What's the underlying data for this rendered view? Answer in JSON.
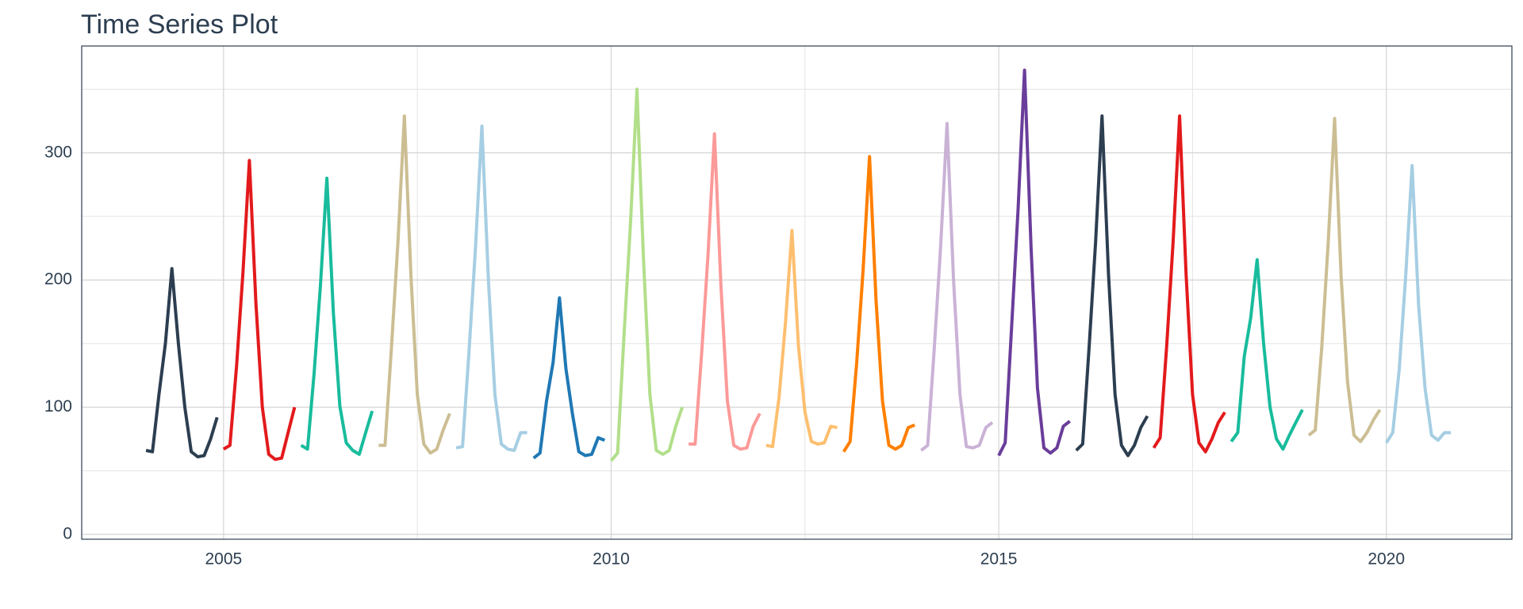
{
  "chart_data": {
    "type": "line",
    "title": "Time Series Plot",
    "xlim": [
      2003.17,
      2021.62
    ],
    "ylim": [
      -3.8,
      384
    ],
    "xticks": [
      2005,
      2010,
      2015,
      2020
    ],
    "yticks": [
      0,
      100,
      200,
      300
    ],
    "xminor": [
      2002.5,
      2007.5,
      2012.5,
      2017.5
    ],
    "yminor": [
      50,
      150,
      250,
      350
    ],
    "grid": true,
    "series": [
      {
        "color": "#2c3e50",
        "x": [
          2004,
          2004.083,
          2004.167,
          2004.25,
          2004.333,
          2004.417,
          2004.5,
          2004.583,
          2004.667,
          2004.75,
          2004.833,
          2004.917
        ],
        "values": [
          66,
          65,
          110,
          150,
          209,
          150,
          100,
          65,
          61,
          62,
          75,
          92
        ]
      },
      {
        "color": "#e31a1c",
        "x": [
          2005,
          2005.083,
          2005.167,
          2005.25,
          2005.333,
          2005.417,
          2005.5,
          2005.583,
          2005.667,
          2005.75,
          2005.833,
          2005.917
        ],
        "values": [
          67,
          70,
          132,
          206,
          294,
          182,
          100,
          63,
          59,
          60,
          80,
          100
        ]
      },
      {
        "color": "#18bc9c",
        "x": [
          2006,
          2006.083,
          2006.167,
          2006.25,
          2006.333,
          2006.417,
          2006.5,
          2006.583,
          2006.667,
          2006.75,
          2006.833,
          2006.917
        ],
        "values": [
          70,
          67,
          126,
          196,
          280,
          174,
          101,
          72,
          66,
          63,
          80,
          97
        ]
      },
      {
        "color": "#ccbe93",
        "x": [
          2007,
          2007.083,
          2007.167,
          2007.25,
          2007.333,
          2007.417,
          2007.5,
          2007.583,
          2007.667,
          2007.75,
          2007.833,
          2007.917
        ],
        "values": [
          70,
          70,
          148,
          230,
          329,
          204,
          110,
          71,
          64,
          67,
          82,
          95
        ]
      },
      {
        "color": "#a6cee3",
        "x": [
          2008,
          2008.083,
          2008.167,
          2008.25,
          2008.333,
          2008.417,
          2008.5,
          2008.583,
          2008.667,
          2008.75,
          2008.833,
          2008.917
        ],
        "values": [
          68,
          69,
          144,
          225,
          321,
          199,
          110,
          71,
          67,
          66,
          80,
          80
        ]
      },
      {
        "color": "#1f78b4",
        "x": [
          2009,
          2009.083,
          2009.167,
          2009.25,
          2009.333,
          2009.417,
          2009.5,
          2009.583,
          2009.667,
          2009.75,
          2009.833,
          2009.917
        ],
        "values": [
          60,
          64,
          105,
          135,
          186,
          130,
          95,
          65,
          62,
          63,
          76,
          74
        ]
      },
      {
        "color": "#b2df8a",
        "x": [
          2010,
          2010.083,
          2010.167,
          2010.25,
          2010.333,
          2010.417,
          2010.5,
          2010.583,
          2010.667,
          2010.75,
          2010.833,
          2010.917
        ],
        "values": [
          58,
          64,
          158,
          245,
          350,
          217,
          110,
          66,
          63,
          66,
          85,
          100
        ]
      },
      {
        "color": "#fb9a99",
        "x": [
          2011,
          2011.083,
          2011.167,
          2011.25,
          2011.333,
          2011.417,
          2011.5,
          2011.583,
          2011.667,
          2011.75,
          2011.833,
          2011.917
        ],
        "values": [
          71,
          71,
          142,
          220,
          315,
          195,
          105,
          70,
          67,
          68,
          85,
          95
        ]
      },
      {
        "color": "#fdbf6f",
        "x": [
          2012,
          2012.083,
          2012.167,
          2012.25,
          2012.333,
          2012.417,
          2012.5,
          2012.583,
          2012.667,
          2012.75,
          2012.833,
          2012.917
        ],
        "values": [
          70,
          69,
          108,
          167,
          239,
          148,
          96,
          73,
          71,
          72,
          85,
          84
        ]
      },
      {
        "color": "#ff7f00",
        "x": [
          2013,
          2013.083,
          2013.167,
          2013.25,
          2013.333,
          2013.417,
          2013.5,
          2013.583,
          2013.667,
          2013.75,
          2013.833,
          2013.917
        ],
        "values": [
          65,
          73,
          134,
          208,
          297,
          184,
          105,
          70,
          67,
          70,
          84,
          86
        ]
      },
      {
        "color": "#cab2d6",
        "x": [
          2014,
          2014.083,
          2014.167,
          2014.25,
          2014.333,
          2014.417,
          2014.5,
          2014.583,
          2014.667,
          2014.75,
          2014.833,
          2014.917
        ],
        "values": [
          66,
          70,
          145,
          226,
          323,
          200,
          110,
          69,
          68,
          70,
          84,
          88
        ]
      },
      {
        "color": "#6a3d9a",
        "x": [
          2015,
          2015.083,
          2015.167,
          2015.25,
          2015.333,
          2015.417,
          2015.5,
          2015.583,
          2015.667,
          2015.75,
          2015.833,
          2015.917
        ],
        "values": [
          62,
          72,
          164,
          256,
          365,
          226,
          115,
          68,
          64,
          68,
          85,
          89
        ]
      },
      {
        "color": "#2c3e50",
        "x": [
          2016,
          2016.083,
          2016.167,
          2016.25,
          2016.333,
          2016.417,
          2016.5,
          2016.583,
          2016.667,
          2016.75,
          2016.833,
          2016.917
        ],
        "values": [
          66,
          71,
          148,
          230,
          329,
          204,
          110,
          70,
          62,
          70,
          84,
          93
        ]
      },
      {
        "color": "#e31a1c",
        "x": [
          2017,
          2017.083,
          2017.167,
          2017.25,
          2017.333,
          2017.417,
          2017.5,
          2017.583,
          2017.667,
          2017.75,
          2017.833,
          2017.917
        ],
        "values": [
          68,
          76,
          148,
          230,
          329,
          204,
          110,
          72,
          65,
          75,
          88,
          96
        ]
      },
      {
        "color": "#18bc9c",
        "x": [
          2018,
          2018.083,
          2018.167,
          2018.25,
          2018.333,
          2018.417,
          2018.5,
          2018.583,
          2018.667,
          2018.75,
          2018.833,
          2018.917
        ],
        "values": [
          73,
          80,
          140,
          170,
          216,
          150,
          100,
          75,
          67,
          78,
          88,
          98
        ]
      },
      {
        "color": "#ccbe93",
        "x": [
          2019,
          2019.083,
          2019.167,
          2019.25,
          2019.333,
          2019.417,
          2019.5,
          2019.583,
          2019.667,
          2019.75,
          2019.833,
          2019.917
        ],
        "values": [
          78,
          82,
          147,
          229,
          327,
          203,
          120,
          78,
          73,
          80,
          90,
          98
        ]
      },
      {
        "color": "#a6cee3",
        "x": [
          2020,
          2020.083,
          2020.167,
          2020.25,
          2020.333,
          2020.417,
          2020.5,
          2020.583,
          2020.667,
          2020.75,
          2020.833
        ],
        "values": [
          72,
          80,
          130,
          203,
          290,
          180,
          115,
          78,
          74,
          80,
          80
        ]
      }
    ]
  }
}
